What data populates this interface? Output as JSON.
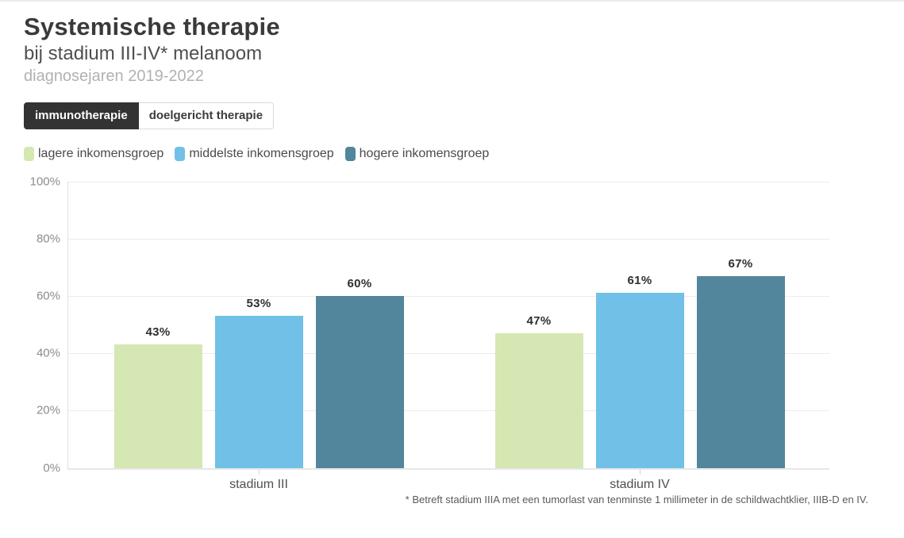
{
  "page": {
    "title": "Systemische therapie",
    "subtitle": "bij stadium III-IV* melanoom",
    "period": "diagnosejaren 2019-2022",
    "footnote": "* Betreft stadium IIIA met een tumorlast van tenminste 1 millimeter in de schildwachtklier, IIIB-D en IV."
  },
  "tabs": [
    {
      "label": "immunotherapie",
      "active": true
    },
    {
      "label": "doelgericht therapie",
      "active": false
    }
  ],
  "colors": {
    "active_tab_bg": "#333333",
    "gridline": "#ececec",
    "green": "#d5e7b2",
    "blue": "#70c0e7",
    "teal": "#52869c"
  },
  "chart_data": {
    "type": "bar",
    "categories": [
      "stadium III",
      "stadium IV"
    ],
    "series": [
      {
        "name": "lagere inkomensgroep",
        "color": "#d5e7b2",
        "values": [
          43,
          47
        ]
      },
      {
        "name": "middelste inkomensgroep",
        "color": "#70c0e7",
        "values": [
          53,
          61
        ]
      },
      {
        "name": "hogere inkomensgroep",
        "color": "#52869c",
        "values": [
          60,
          67
        ]
      }
    ],
    "value_suffix": "%",
    "ylabel": "",
    "xlabel": "",
    "ylim": [
      0,
      100
    ],
    "y_tick_step": 20,
    "y_tick_labels": [
      "0%",
      "20%",
      "40%",
      "60%",
      "80%",
      "100%"
    ],
    "grid": true,
    "legend_position": "top-left",
    "bar_value_labels": true
  }
}
